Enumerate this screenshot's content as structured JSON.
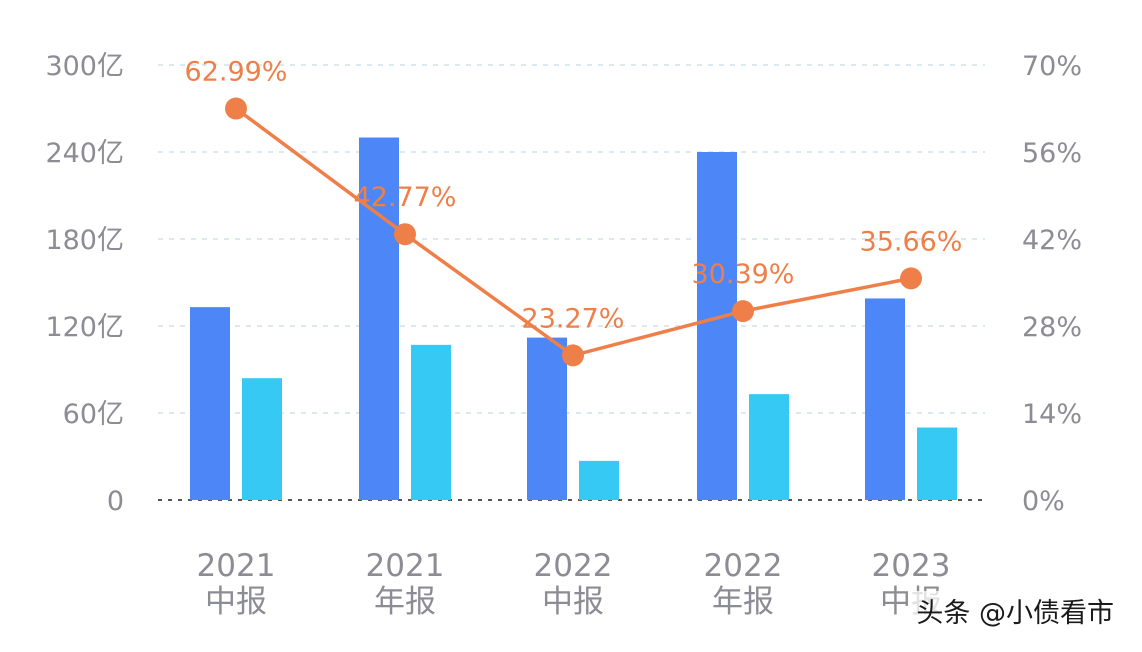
{
  "chart_data": {
    "type": "bar",
    "categories": [
      [
        "2021",
        "中报"
      ],
      [
        "2021",
        "年报"
      ],
      [
        "2022",
        "中报"
      ],
      [
        "2022",
        "年报"
      ],
      [
        "2023",
        "中报"
      ]
    ],
    "series": [
      {
        "name": "series-1",
        "kind": "bar",
        "axis": "left",
        "color": "#4d87f7",
        "values": [
          133,
          250,
          112,
          240,
          139
        ]
      },
      {
        "name": "series-2",
        "kind": "bar",
        "axis": "left",
        "color": "#35c9f3",
        "values": [
          84,
          107,
          27,
          73,
          50
        ]
      },
      {
        "name": "series-3",
        "kind": "line",
        "axis": "right",
        "color": "#ef7f48",
        "values": [
          62.99,
          42.77,
          23.27,
          30.39,
          35.66
        ],
        "labels": [
          "62.99%",
          "42.77%",
          "23.27%",
          "30.39%",
          "35.66%"
        ]
      }
    ],
    "left_axis": {
      "ylim": [
        0,
        300
      ],
      "ticks": [
        0,
        60,
        120,
        180,
        240,
        300
      ],
      "tick_labels": [
        "0",
        "60亿",
        "120亿",
        "180亿",
        "240亿",
        "300亿"
      ]
    },
    "right_axis": {
      "ylim": [
        0,
        70
      ],
      "ticks": [
        0,
        14,
        28,
        42,
        56,
        70
      ],
      "tick_labels": [
        "0%",
        "14%",
        "28%",
        "42%",
        "56%",
        "70%"
      ]
    },
    "grid": true,
    "title": "",
    "xlabel": "",
    "ylabel": ""
  },
  "watermark": "头条 @小债看市",
  "colors": {
    "grid": "#cde3ec",
    "baseline": "#555555",
    "tick_text": "#8c8c94"
  }
}
